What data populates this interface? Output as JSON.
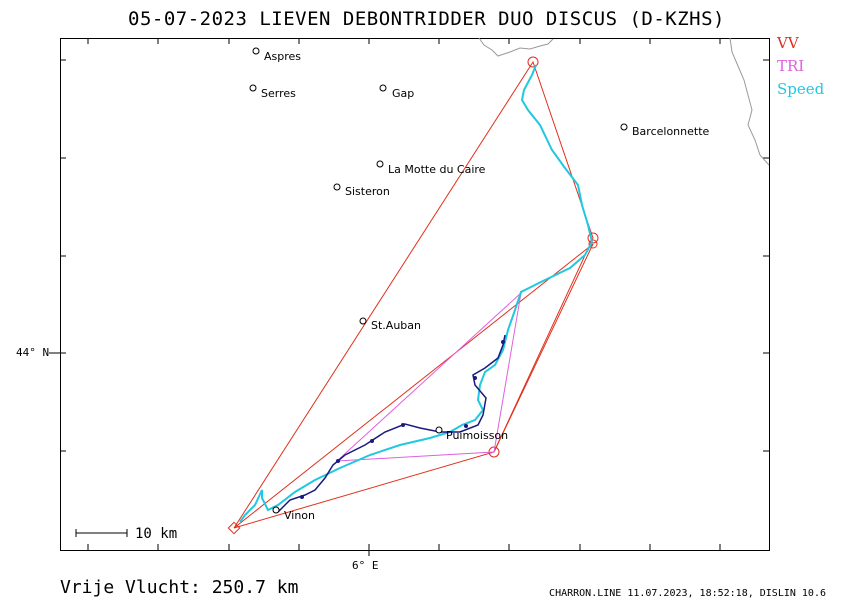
{
  "title": "05-07-2023   LIEVEN DEBONTRIDDER   DUO DISCUS (D-KZHS)",
  "legend": [
    {
      "label": "VV",
      "color": "#e0301e"
    },
    {
      "label": "TRI",
      "color": "#e060e0"
    },
    {
      "label": "Speed",
      "color": "#20c8e0"
    }
  ],
  "axes": {
    "lat_label": "44° N",
    "lon_label": "6° E"
  },
  "scale": {
    "label": "10  km"
  },
  "cities": [
    {
      "name": "Aspres"
    },
    {
      "name": "Serres"
    },
    {
      "name": "Gap"
    },
    {
      "name": "Barcelonnette"
    },
    {
      "name": "La Motte du Caire"
    },
    {
      "name": "Sisteron"
    },
    {
      "name": "St.Auban"
    },
    {
      "name": "Puimoisson"
    },
    {
      "name": "Vinon"
    }
  ],
  "footer": {
    "distance": "Vrije Vlucht:  250.7 km",
    "info": "CHARRON.LINE 11.07.2023, 18:52:18, DISLIN 10.6"
  },
  "colors": {
    "track": "#1a1a80",
    "speed": "#20c8e0",
    "vv": "#e0301e",
    "tri": "#e060e0",
    "border": "#9a9a9a"
  }
}
